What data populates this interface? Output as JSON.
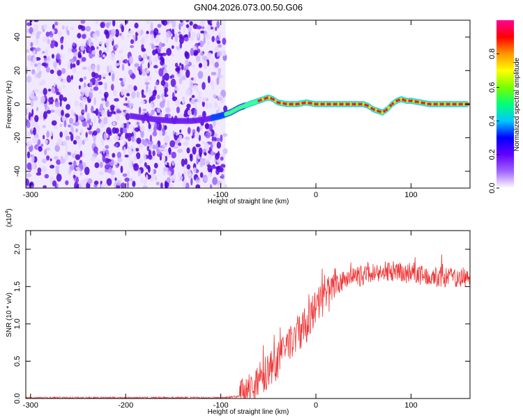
{
  "title": "GN04.2026.073.00.50.G06",
  "chart_data": [
    {
      "type": "heatmap",
      "xlabel": "Height of straight line (km)",
      "ylabel": "Frequency (Hz)",
      "xlim": [
        -305,
        162
      ],
      "ylim": [
        -50,
        50
      ],
      "xticks": [
        -300,
        -200,
        -100,
        0,
        100
      ],
      "yticks": [
        -40,
        -20,
        0,
        20,
        40
      ],
      "noise_region_x": [
        -305,
        -95
      ],
      "signal_track": {
        "x": [
          -195,
          -170,
          -150,
          -130,
          -115,
          -100,
          -90,
          -80,
          -70,
          -60,
          -50,
          -45,
          -40,
          -30,
          -20,
          -10,
          0,
          10,
          20,
          30,
          40,
          50,
          55,
          60,
          65,
          70,
          75,
          80,
          85,
          90,
          95,
          100,
          110,
          120,
          130,
          140,
          150,
          160
        ],
        "y": [
          -7,
          -9,
          -10,
          -10,
          -9,
          -7,
          -5,
          -2,
          0,
          2,
          4,
          3,
          1,
          0,
          0,
          1,
          0,
          0,
          0,
          0,
          0,
          0,
          -1,
          -3,
          -4,
          -5,
          -3,
          0,
          2,
          3,
          2,
          2,
          1,
          0,
          0,
          0,
          0,
          0
        ]
      },
      "colorbar": {
        "label": "Normalized spectral amplitude",
        "range": [
          0,
          1
        ],
        "ticks": [
          "0.0",
          "0.2",
          "0.4",
          "0.6",
          "0.8"
        ],
        "colors": [
          "#ffffff",
          "#a064ff",
          "#6400ff",
          "#0000ff",
          "#00c8ff",
          "#00ff78",
          "#78ff00",
          "#ffff00",
          "#ff9600",
          "#ff0000",
          "#ff0096"
        ]
      }
    },
    {
      "type": "line",
      "xlabel": "Height of straight line (km)",
      "ylabel": "SNR (10 * v/v)",
      "multiplier_label": "(x10",
      "multiplier_exponent": "4",
      "xlim": [
        -305,
        162
      ],
      "ylim": [
        0,
        2.25
      ],
      "xticks": [
        -300,
        -200,
        -100,
        0,
        100
      ],
      "yticks": [
        "0.0",
        "0.5",
        "1.0",
        "1.5",
        "2.0"
      ],
      "color": "#ee3333",
      "trend": {
        "x": [
          -305,
          -100,
          -80,
          -70,
          -60,
          -50,
          -40,
          -30,
          -20,
          -10,
          0,
          10,
          20,
          30,
          40,
          50,
          60,
          70,
          80,
          90,
          100,
          110,
          120,
          130,
          140,
          150,
          162
        ],
        "y": [
          0.01,
          0.01,
          0.03,
          0.12,
          0.25,
          0.35,
          0.5,
          0.7,
          0.85,
          1.0,
          1.2,
          1.35,
          1.5,
          1.58,
          1.62,
          1.65,
          1.68,
          1.7,
          1.7,
          1.68,
          1.67,
          1.66,
          1.65,
          1.63,
          1.62,
          1.62,
          1.62
        ]
      }
    }
  ]
}
